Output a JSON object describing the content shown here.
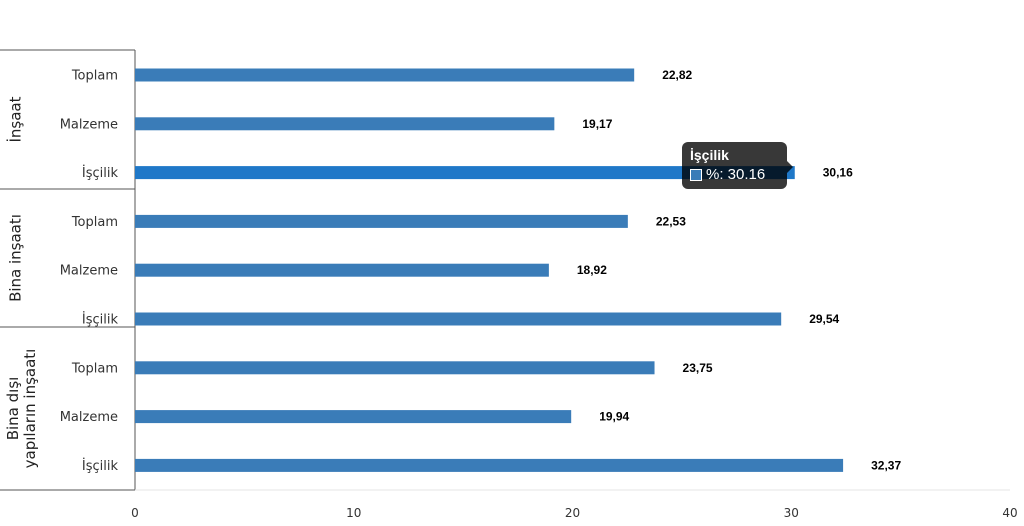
{
  "chart_data": {
    "type": "bar",
    "orientation": "horizontal",
    "groups": [
      {
        "name": "İnşaat",
        "categories": [
          "Toplam",
          "Malzeme",
          "İşçilik"
        ],
        "values": [
          22.82,
          19.17,
          30.16
        ],
        "value_labels": [
          "22,82",
          "19,17",
          "30,16"
        ]
      },
      {
        "name": "Bina inşaatı",
        "categories": [
          "Toplam",
          "Malzeme",
          "İşçilik"
        ],
        "values": [
          22.53,
          18.92,
          29.54
        ],
        "value_labels": [
          "22,53",
          "18,92",
          "29,54"
        ]
      },
      {
        "name": "Bina dışı yapıların inşaatı",
        "name_lines": [
          "Bina dışı",
          "yapıların inşaatı"
        ],
        "categories": [
          "Toplam",
          "Malzeme",
          "İşçilik"
        ],
        "values": [
          23.75,
          19.94,
          32.37
        ],
        "value_labels": [
          "23,75",
          "19,94",
          "32,37"
        ]
      }
    ],
    "xlim": [
      0,
      40
    ],
    "xticks": [
      "0",
      "10",
      "20",
      "30",
      "40"
    ],
    "grid": false,
    "legend": "none",
    "bar_color": "#3a7cb8",
    "highlight_color": "#1f78c8",
    "highlighted": {
      "group": 0,
      "category": 2
    }
  },
  "tooltip": {
    "title": "İşçilik",
    "text": "%: 30.16",
    "swatch_color": "#3a7cb8"
  }
}
